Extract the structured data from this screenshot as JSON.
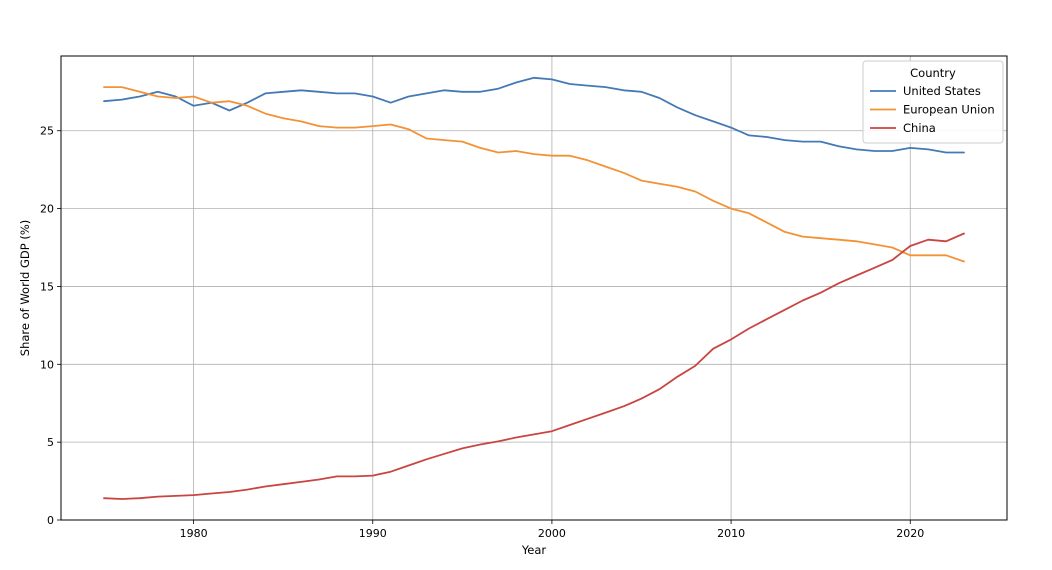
{
  "chart_data": {
    "type": "line",
    "xlabel": "Year",
    "ylabel": "Share of World GDP (%)",
    "xlim": [
      1972.6,
      2025.4
    ],
    "ylim": [
      0,
      29.8
    ],
    "grid": true,
    "xticks": [
      1980,
      1990,
      2000,
      2010,
      2020
    ],
    "yticks": [
      0,
      5,
      10,
      15,
      20,
      25
    ],
    "legend": {
      "title": "Country",
      "position": "top-right"
    },
    "x": [
      1975,
      1976,
      1977,
      1978,
      1979,
      1980,
      1981,
      1982,
      1983,
      1984,
      1985,
      1986,
      1987,
      1988,
      1989,
      1990,
      1991,
      1992,
      1993,
      1994,
      1995,
      1996,
      1997,
      1998,
      1999,
      2000,
      2001,
      2002,
      2003,
      2004,
      2005,
      2006,
      2007,
      2008,
      2009,
      2010,
      2011,
      2012,
      2013,
      2014,
      2015,
      2016,
      2017,
      2018,
      2019,
      2020,
      2021,
      2022,
      2023
    ],
    "series": [
      {
        "name": "United States",
        "color": "#4479b5",
        "values": [
          26.9,
          27.0,
          27.2,
          27.5,
          27.2,
          26.6,
          26.8,
          26.3,
          26.8,
          27.4,
          27.5,
          27.6,
          27.5,
          27.4,
          27.4,
          27.2,
          26.8,
          27.2,
          27.4,
          27.6,
          27.5,
          27.5,
          27.7,
          28.1,
          28.4,
          28.3,
          28.0,
          27.9,
          27.8,
          27.6,
          27.5,
          27.1,
          26.5,
          26.0,
          25.6,
          25.2,
          24.7,
          24.6,
          24.4,
          24.3,
          24.3,
          24.0,
          23.8,
          23.7,
          23.7,
          23.9,
          23.8,
          23.6,
          23.6
        ]
      },
      {
        "name": "European Union",
        "color": "#f39235",
        "values": [
          27.8,
          27.8,
          27.5,
          27.2,
          27.1,
          27.2,
          26.8,
          26.9,
          26.6,
          26.1,
          25.8,
          25.6,
          25.3,
          25.2,
          25.2,
          25.3,
          25.4,
          25.1,
          24.5,
          24.4,
          24.3,
          23.9,
          23.6,
          23.7,
          23.5,
          23.4,
          23.4,
          23.1,
          22.7,
          22.3,
          21.8,
          21.6,
          21.4,
          21.1,
          20.5,
          20.0,
          19.7,
          19.1,
          18.5,
          18.2,
          18.1,
          18.0,
          17.9,
          17.7,
          17.5,
          17.0,
          17.0,
          17.0,
          16.6
        ]
      },
      {
        "name": "China",
        "color": "#c94542",
        "values": [
          1.4,
          1.35,
          1.4,
          1.5,
          1.55,
          1.6,
          1.7,
          1.8,
          1.95,
          2.15,
          2.3,
          2.45,
          2.6,
          2.8,
          2.8,
          2.85,
          3.1,
          3.5,
          3.9,
          4.25,
          4.6,
          4.85,
          5.05,
          5.3,
          5.5,
          5.7,
          6.1,
          6.5,
          6.9,
          7.3,
          7.8,
          8.4,
          9.2,
          9.9,
          11.0,
          11.6,
          12.3,
          12.9,
          13.5,
          14.1,
          14.6,
          15.2,
          15.7,
          16.2,
          16.7,
          17.6,
          18.0,
          17.9,
          18.4
        ]
      }
    ]
  }
}
